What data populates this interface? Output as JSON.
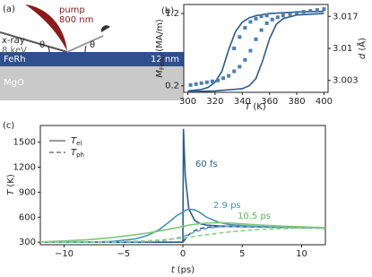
{
  "diagram": {
    "label": "(a)",
    "pump": "pump",
    "pump_wavelength": "800 nm",
    "xray": "x-ray",
    "xray_energy": "8 keV",
    "theta_in": "θ",
    "theta_out": "θ",
    "layer": "FeRh",
    "thickness": "12 nm",
    "substrate": "MgO"
  },
  "chart_data": [
    {
      "type": "line",
      "label": "(b)",
      "xlabel": "T",
      "xlabel_unit": "(K)",
      "ylabel": "M",
      "ylabel_sub": "FeRh",
      "ylabel_unit": "(MA/m)",
      "y2label": "d",
      "y2label_unit": "(Å)",
      "xlim": [
        297,
        403
      ],
      "xticks": [
        300,
        320,
        340,
        360,
        380,
        400
      ],
      "ylim": [
        0.11,
        1.325
      ],
      "yticks": [
        0.2,
        1.2
      ],
      "y2lim": [
        3.0004,
        3.0196
      ],
      "y2ticks": [
        3.003,
        3.01,
        3.017
      ],
      "series": [
        {
          "color": "#2e5b8a",
          "x": [
            300,
            310,
            315,
            320,
            325,
            330,
            335,
            340,
            345,
            350,
            360,
            380,
            400
          ],
          "values": [
            0.13,
            0.15,
            0.18,
            0.25,
            0.4,
            0.7,
            0.95,
            1.08,
            1.14,
            1.17,
            1.2,
            1.22,
            1.23
          ]
        },
        {
          "color": "#2e5b8a",
          "x": [
            300,
            320,
            340,
            345,
            350,
            355,
            360,
            365,
            370,
            380,
            400
          ],
          "values": [
            0.12,
            0.13,
            0.16,
            0.2,
            0.3,
            0.55,
            0.85,
            1.05,
            1.13,
            1.18,
            1.2
          ]
        },
        {
          "color": "#4a7fb5",
          "marker": "square",
          "axis": "y2",
          "x": [
            302,
            306,
            310,
            314,
            318,
            322,
            326,
            330,
            334,
            338,
            342,
            346,
            350,
            354,
            358,
            362,
            366,
            370,
            375,
            380,
            385,
            390,
            395,
            400,
            334,
            338,
            342,
            346,
            350,
            354,
            358
          ],
          "values": [
            3.002,
            3.0022,
            3.0024,
            3.0026,
            3.0028,
            3.003,
            3.0035,
            3.004,
            3.005,
            3.006,
            3.0075,
            3.0095,
            3.012,
            3.014,
            3.0155,
            3.0163,
            3.0168,
            3.0172,
            3.0175,
            3.0178,
            3.018,
            3.0182,
            3.0184,
            3.0186,
            3.01,
            3.0125,
            3.0145,
            3.0158,
            3.0165,
            3.017,
            3.0172
          ]
        }
      ]
    },
    {
      "type": "line",
      "label": "(c)",
      "xlabel": "t",
      "xlabel_unit": "(ps)",
      "ylabel": "T",
      "ylabel_unit": "(K)",
      "xlim": [
        -12,
        12
      ],
      "xticks": [
        {
          "value": -10,
          "label": "−10"
        },
        {
          "value": -5,
          "label": "−5"
        },
        0,
        5,
        10
      ],
      "ylim": [
        270,
        1700
      ],
      "yticks": [
        300,
        600,
        900,
        1200,
        1500
      ],
      "x": [
        -12,
        -10,
        -8,
        -6,
        -4,
        -3,
        -2,
        -1,
        -0.5,
        0,
        0.05,
        0.2,
        0.5,
        1,
        1.5,
        2,
        3,
        4,
        6,
        8,
        10,
        12
      ],
      "legend": [
        {
          "name": "T",
          "sub": "el",
          "dash": false,
          "color": "#777777"
        },
        {
          "name": "T",
          "sub": "ph",
          "dash": true,
          "color": "#777777"
        }
      ],
      "series": [
        {
          "color": "#2e5b8a",
          "dash": false,
          "values": [
            300,
            300,
            300,
            300,
            300,
            300,
            300,
            300,
            300,
            300,
            1660,
            1100,
            700,
            560,
            520,
            505,
            495,
            490,
            485,
            480,
            475,
            470
          ]
        },
        {
          "color": "#2e5b8a",
          "dash": true,
          "values": [
            300,
            300,
            300,
            300,
            300,
            300,
            300,
            300,
            300,
            300,
            305,
            340,
            390,
            440,
            465,
            478,
            488,
            488,
            485,
            480,
            475,
            470
          ]
        },
        {
          "color": "#4a90b5",
          "dash": false,
          "values": [
            300,
            300,
            302,
            310,
            340,
            380,
            450,
            560,
            620,
            660,
            665,
            680,
            695,
            690,
            650,
            600,
            540,
            510,
            490,
            482,
            476,
            470
          ]
        },
        {
          "color": "#6aa8c8",
          "dash": true,
          "values": [
            300,
            300,
            300,
            301,
            302,
            305,
            315,
            335,
            350,
            370,
            372,
            380,
            395,
            420,
            445,
            465,
            485,
            492,
            490,
            482,
            476,
            470
          ]
        },
        {
          "color": "#7cc87a",
          "dash": false,
          "values": [
            305,
            315,
            330,
            355,
            390,
            410,
            435,
            460,
            475,
            490,
            490,
            495,
            505,
            515,
            525,
            530,
            535,
            530,
            510,
            495,
            485,
            475
          ]
        },
        {
          "color": "#8fd08a",
          "dash": true,
          "values": [
            300,
            301,
            303,
            306,
            312,
            318,
            326,
            338,
            345,
            352,
            352,
            355,
            360,
            370,
            380,
            390,
            408,
            425,
            450,
            462,
            468,
            470
          ]
        }
      ],
      "annotations": [
        {
          "text": "60 fs",
          "color": "#2e5b8a"
        },
        {
          "text": "2.9 ps",
          "color": "#4a90b5"
        },
        {
          "text": "10.5 ps",
          "color": "#5cb85a"
        }
      ]
    }
  ]
}
